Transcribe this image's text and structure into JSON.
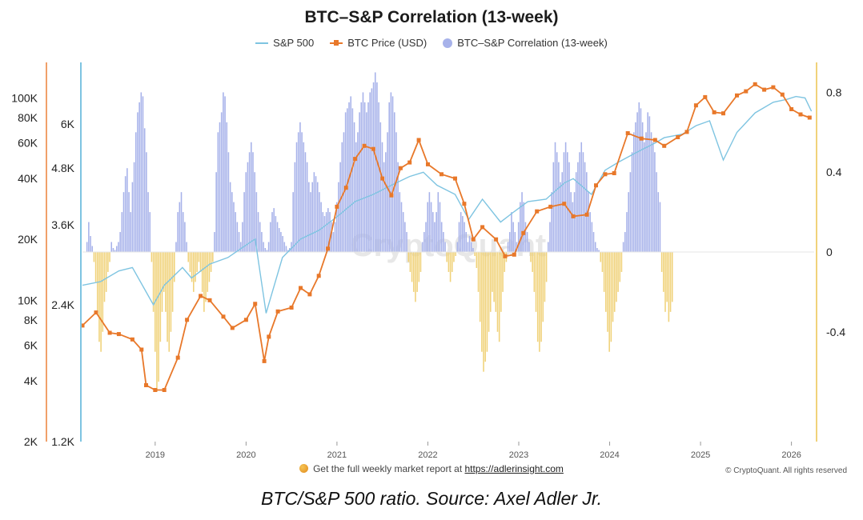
{
  "title": "BTC–S&P Correlation (13-week)",
  "legend": {
    "sp500": "S&P 500",
    "btc": "BTC Price (USD)",
    "corr": "BTC–S&P Correlation (13-week)"
  },
  "footer": {
    "text": "Get the full weekly market report at",
    "link": "https://adlerinsight.com"
  },
  "copyright": "© CryptoQuant. All rights reserved",
  "caption": "BTC/S&P 500 ratio. Source: Axel Adler Jr.",
  "watermark": "CryptoQuant",
  "colors": {
    "sp500": "#7ec4e1",
    "btc": "#e8782a",
    "corr_pos": "#a7b2ea",
    "corr_neg": "#f0d27a"
  },
  "chart_data": {
    "type": "combo",
    "x_labels": [
      "2019",
      "2020",
      "2021",
      "2022",
      "2023",
      "2024",
      "2025",
      "2026"
    ],
    "x_range": [
      2018.2,
      2026.25
    ],
    "btc_axis": {
      "scale": "log",
      "range": [
        2000,
        150000
      ],
      "ticks": [
        2000,
        4000,
        6000,
        8000,
        10000,
        20000,
        40000,
        60000,
        80000,
        100000
      ],
      "tick_labels": [
        "2K",
        "4K",
        "6K",
        "8K",
        "10K",
        "20K",
        "40K",
        "60K",
        "80K",
        "100K"
      ]
    },
    "sp500_axis": {
      "scale": "log",
      "range": [
        1200,
        8200
      ],
      "ticks": [
        1200,
        2400,
        3600,
        4800,
        6000
      ],
      "tick_labels": [
        "1.2K",
        "2.4K",
        "3.6K",
        "4.8K",
        "6K"
      ]
    },
    "corr_axis": {
      "range": [
        -0.95,
        0.95
      ],
      "ticks": [
        -0.4,
        0,
        0.4,
        0.8
      ],
      "tick_labels": [
        "-0.4",
        "0",
        "0.4",
        "0.8"
      ]
    },
    "sp500": {
      "x": [
        2018.2,
        2018.4,
        2018.6,
        2018.75,
        2018.98,
        2019.1,
        2019.3,
        2019.4,
        2019.6,
        2019.8,
        2020.0,
        2020.1,
        2020.22,
        2020.4,
        2020.6,
        2020.8,
        2021.0,
        2021.2,
        2021.4,
        2021.6,
        2021.8,
        2021.95,
        2022.1,
        2022.3,
        2022.45,
        2022.6,
        2022.8,
        2022.95,
        2023.1,
        2023.3,
        2023.5,
        2023.6,
        2023.8,
        2023.95,
        2024.1,
        2024.3,
        2024.5,
        2024.6,
        2024.8,
        2024.95,
        2025.1,
        2025.25,
        2025.4,
        2025.6,
        2025.8,
        2025.95,
        2026.05,
        2026.15,
        2026.22
      ],
      "values": [
        2650,
        2700,
        2850,
        2900,
        2400,
        2650,
        2900,
        2750,
        2950,
        3050,
        3250,
        3350,
        2300,
        3050,
        3350,
        3500,
        3750,
        4050,
        4200,
        4400,
        4600,
        4700,
        4400,
        4200,
        3700,
        4100,
        3650,
        3850,
        4050,
        4100,
        4450,
        4550,
        4200,
        4750,
        4950,
        5200,
        5450,
        5600,
        5700,
        5950,
        6100,
        5000,
        5750,
        6350,
        6700,
        6800,
        6900,
        6850,
        6400
      ]
    },
    "btc": {
      "x": [
        2018.2,
        2018.35,
        2018.5,
        2018.6,
        2018.75,
        2018.85,
        2018.9,
        2019.0,
        2019.1,
        2019.25,
        2019.35,
        2019.5,
        2019.6,
        2019.75,
        2019.85,
        2020.0,
        2020.1,
        2020.2,
        2020.25,
        2020.35,
        2020.5,
        2020.6,
        2020.7,
        2020.8,
        2020.9,
        2021.0,
        2021.1,
        2021.2,
        2021.3,
        2021.4,
        2021.5,
        2021.6,
        2021.7,
        2021.8,
        2021.9,
        2022.0,
        2022.15,
        2022.3,
        2022.4,
        2022.5,
        2022.6,
        2022.75,
        2022.85,
        2022.95,
        2023.05,
        2023.2,
        2023.35,
        2023.5,
        2023.6,
        2023.75,
        2023.85,
        2023.95,
        2024.05,
        2024.2,
        2024.35,
        2024.5,
        2024.6,
        2024.75,
        2024.85,
        2024.95,
        2025.05,
        2025.15,
        2025.25,
        2025.4,
        2025.5,
        2025.6,
        2025.7,
        2025.8,
        2025.9,
        2026.0,
        2026.1,
        2026.2
      ],
      "values": [
        7500,
        8700,
        6900,
        6800,
        6400,
        5700,
        3800,
        3600,
        3600,
        5200,
        8000,
        10500,
        10000,
        8300,
        7300,
        8000,
        9600,
        5000,
        6600,
        8800,
        9200,
        11500,
        10700,
        13200,
        18000,
        29000,
        36000,
        50000,
        58000,
        56000,
        40000,
        33000,
        45000,
        48000,
        62000,
        47000,
        42000,
        40000,
        30000,
        20000,
        23000,
        20000,
        16500,
        16800,
        21500,
        27500,
        29000,
        30000,
        26000,
        26500,
        37000,
        42000,
        42500,
        67000,
        63000,
        62000,
        58000,
        64000,
        68000,
        92000,
        101000,
        85000,
        84000,
        103000,
        108000,
        117000,
        110000,
        113000,
        104000,
        88000,
        83000,
        80000
      ]
    },
    "correlation": {
      "x_start": 2018.25,
      "step": 0.01922,
      "values": [
        0.05,
        0.15,
        0.08,
        0.03,
        -0.05,
        -0.15,
        -0.3,
        -0.45,
        -0.5,
        -0.4,
        -0.25,
        -0.2,
        -0.1,
        -0.05,
        0.05,
        0.02,
        0.01,
        0.03,
        0.05,
        0.1,
        0.2,
        0.3,
        0.38,
        0.42,
        0.3,
        0.2,
        0.35,
        0.45,
        0.6,
        0.7,
        0.75,
        0.8,
        0.78,
        0.62,
        0.5,
        0.3,
        0.2,
        -0.05,
        -0.3,
        -0.5,
        -0.7,
        -0.65,
        -0.45,
        -0.3,
        -0.2,
        -0.3,
        -0.45,
        -0.5,
        -0.4,
        -0.3,
        -0.15,
        0.05,
        0.2,
        0.25,
        0.3,
        0.2,
        0.15,
        0.05,
        -0.05,
        -0.1,
        -0.15,
        -0.2,
        -0.15,
        -0.1,
        -0.05,
        -0.1,
        -0.2,
        -0.3,
        -0.25,
        -0.2,
        -0.15,
        -0.1,
        -0.05,
        0.1,
        0.4,
        0.6,
        0.65,
        0.7,
        0.8,
        0.78,
        0.65,
        0.5,
        0.35,
        0.3,
        0.25,
        0.2,
        0.15,
        0.1,
        0.05,
        0.15,
        0.3,
        0.4,
        0.45,
        0.5,
        0.55,
        0.5,
        0.4,
        0.3,
        0.2,
        0.15,
        0.1,
        0.05,
        0.02,
        0.01,
        0.05,
        0.15,
        0.2,
        0.22,
        0.18,
        0.15,
        0.12,
        0.1,
        0.08,
        0.05,
        0.03,
        0.01,
        0.02,
        0.05,
        0.3,
        0.45,
        0.55,
        0.6,
        0.65,
        0.6,
        0.55,
        0.5,
        0.45,
        0.35,
        0.3,
        0.35,
        0.4,
        0.38,
        0.35,
        0.3,
        0.25,
        0.2,
        0.18,
        0.2,
        0.22,
        0.2,
        0.15,
        0.1,
        0.15,
        0.25,
        0.35,
        0.45,
        0.55,
        0.6,
        0.7,
        0.72,
        0.75,
        0.78,
        0.72,
        0.65,
        0.55,
        0.6,
        0.7,
        0.75,
        0.8,
        0.75,
        0.7,
        0.75,
        0.8,
        0.82,
        0.85,
        0.9,
        0.85,
        0.75,
        0.65,
        0.55,
        0.45,
        0.5,
        0.6,
        0.75,
        0.8,
        0.78,
        0.7,
        0.6,
        0.45,
        0.3,
        0.25,
        0.2,
        0.15,
        0.1,
        -0.05,
        -0.1,
        -0.15,
        -0.2,
        -0.25,
        -0.2,
        -0.15,
        -0.1,
        0.05,
        0.1,
        0.15,
        0.25,
        0.3,
        0.25,
        0.2,
        0.15,
        0.2,
        0.3,
        0.25,
        0.15,
        0.1,
        0.05,
        -0.05,
        -0.1,
        -0.15,
        -0.1,
        -0.05,
        -0.02,
        0.05,
        0.15,
        0.2,
        0.18,
        0.15,
        0.1,
        0.05,
        0.08,
        0.05,
        0.02,
        -0.02,
        -0.08,
        -0.2,
        -0.35,
        -0.5,
        -0.6,
        -0.55,
        -0.5,
        -0.4,
        -0.3,
        -0.2,
        -0.25,
        -0.3,
        -0.4,
        -0.45,
        -0.3,
        -0.2,
        -0.1,
        -0.05,
        0.05,
        0.1,
        0.2,
        0.15,
        0.1,
        0.05,
        0.15,
        0.25,
        0.3,
        0.25,
        0.15,
        0.1,
        0.05,
        -0.05,
        -0.1,
        -0.2,
        -0.3,
        -0.45,
        -0.5,
        -0.45,
        -0.35,
        -0.25,
        -0.15,
        0.05,
        0.15,
        0.3,
        0.45,
        0.55,
        0.5,
        0.45,
        0.35,
        0.4,
        0.5,
        0.55,
        0.5,
        0.45,
        0.3,
        0.25,
        0.3,
        0.4,
        0.45,
        0.5,
        0.55,
        0.5,
        0.45,
        0.4,
        0.3,
        0.2,
        0.15,
        0.1,
        0.05,
        0.02,
        0.01,
        -0.05,
        -0.1,
        -0.2,
        -0.3,
        -0.4,
        -0.5,
        -0.45,
        -0.35,
        -0.3,
        -0.25,
        -0.2,
        -0.15,
        -0.1,
        0.05,
        0.1,
        0.2,
        0.3,
        0.4,
        0.5,
        0.6,
        0.65,
        0.7,
        0.75,
        0.72,
        0.65,
        0.55,
        0.6,
        0.7,
        0.68,
        0.6,
        0.55,
        0.5,
        0.4,
        0.3,
        0.25,
        -0.1,
        -0.2,
        -0.3,
        -0.25,
        -0.35,
        -0.3,
        -0.25
      ]
    }
  }
}
